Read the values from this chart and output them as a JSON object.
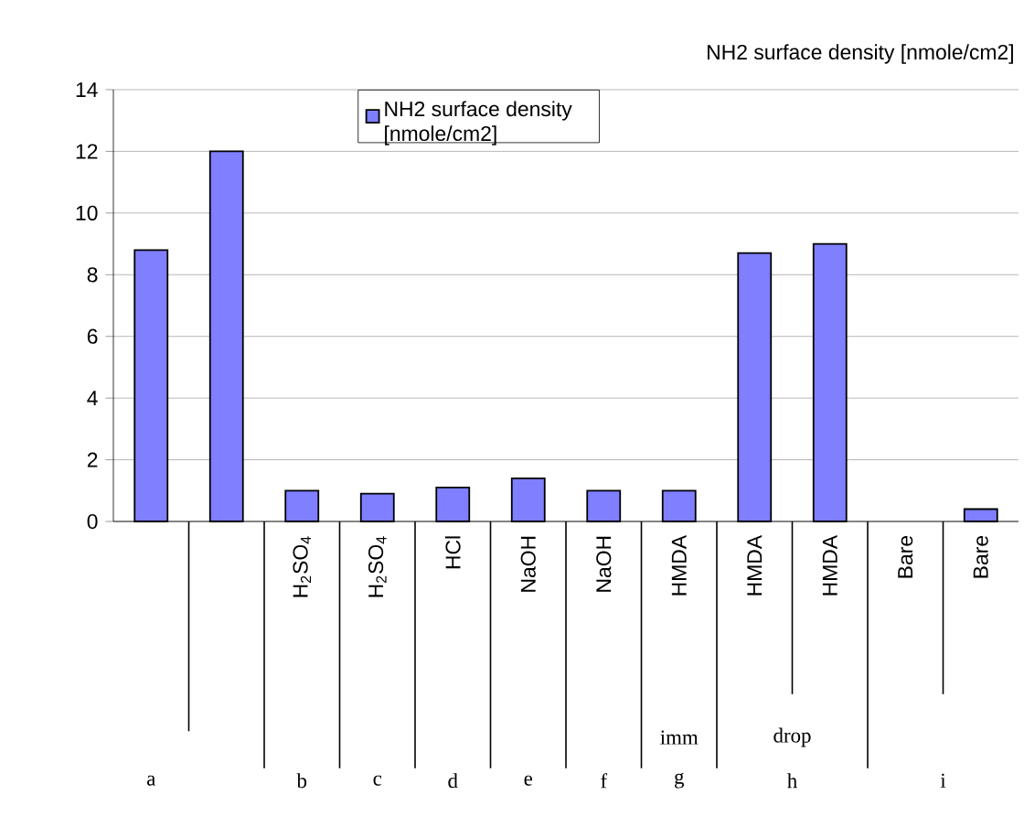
{
  "chart_data": {
    "type": "bar",
    "title": "NH2 surface density  [nmole/cm2]",
    "categories": [
      null,
      null,
      "H$_{2}$SO$_{4}$",
      "H$_{2}$SO$_{4}$",
      "HCl",
      "NaOH",
      "NaOH",
      "HMDA",
      "HMDA",
      "HMDA",
      "Bare",
      "Bare"
    ],
    "series": [
      {
        "name": "NH2 surface density [nmole/cm2]",
        "color": "#7f7fff",
        "values": [
          8.8,
          12,
          1.0,
          0.9,
          1.1,
          1.4,
          1.0,
          1.0,
          8.7,
          9.0,
          0,
          0.4
        ]
      }
    ],
    "ylim": [
      0,
      14
    ],
    "yticks": [
      0,
      2,
      4,
      6,
      8,
      10,
      12,
      14
    ],
    "grid": "y",
    "legend": "top",
    "annotations": [
      "imm",
      "drop",
      "a",
      "b",
      "c",
      "d",
      "e",
      "f",
      "g",
      "h",
      "i"
    ]
  }
}
